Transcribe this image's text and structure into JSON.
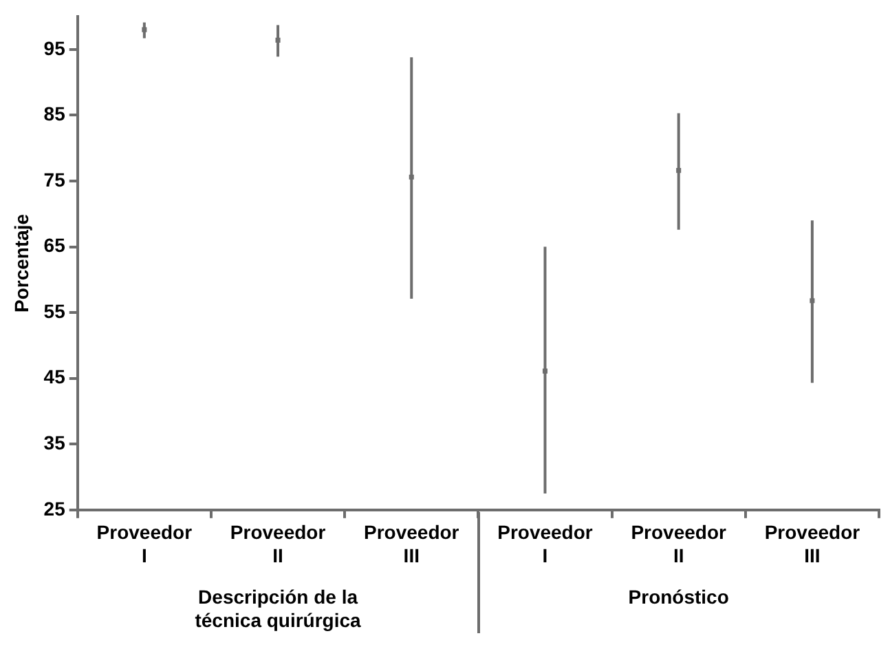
{
  "chart_data": {
    "type": "scatter",
    "ylabel": "Porcentaje",
    "categories": [
      "Proveedor I",
      "Proveedor II",
      "Proveedor III",
      "Proveedor I",
      "Proveedor II",
      "Proveedor III"
    ],
    "series": [
      {
        "color": "#6d6d6d",
        "values": [
          98.0,
          96.4,
          75.6,
          46.1,
          76.6,
          56.8
        ],
        "errors": [
          [
            96.7,
            99.1
          ],
          [
            93.9,
            98.7
          ],
          [
            57.1,
            93.8
          ],
          [
            27.5,
            65.0
          ],
          [
            67.6,
            85.3
          ],
          [
            44.3,
            69.0
          ]
        ]
      }
    ],
    "ylim": [
      25,
      100
    ],
    "yticks": [
      25,
      35,
      45,
      55,
      65,
      75,
      85,
      95
    ],
    "grid": false,
    "legend": false,
    "annotations": [
      "Descripción de la técnica quirúrgica",
      "Pronóstico"
    ]
  }
}
